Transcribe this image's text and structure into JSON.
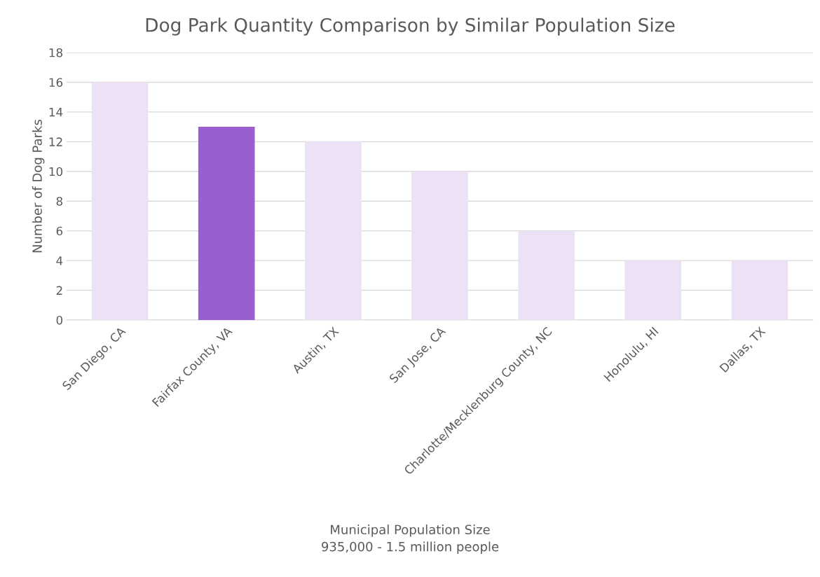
{
  "chart_data": {
    "type": "bar",
    "title": "Dog Park Quantity Comparison by Similar Population Size",
    "xlabel": "Municipal Population Size\n935,000 - 1.5 million people",
    "ylabel": "Number of Dog Parks",
    "categories": [
      "San Diego, CA",
      "Fairfax County, VA",
      "Austin, TX",
      "San Jose, CA",
      "Charlotte/Mecklenburg County, NC",
      "Honolulu, HI",
      "Dallas, TX"
    ],
    "values": [
      16,
      13,
      12,
      10,
      6,
      4,
      4
    ],
    "colors": [
      "#ede2f5",
      "#9a5fcf",
      "#ede2f5",
      "#ede2f5",
      "#ede2f5",
      "#ede2f5",
      "#ede2f5"
    ],
    "ylim": [
      0,
      18
    ],
    "yticks": [
      0,
      2,
      4,
      6,
      8,
      10,
      12,
      14,
      16,
      18
    ],
    "grid": "y",
    "legend": false
  }
}
